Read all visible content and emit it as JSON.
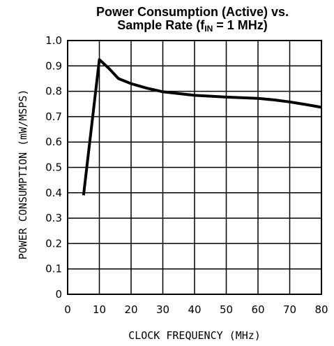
{
  "chart_data": {
    "type": "line",
    "title_line1": "Power Consumption (Active) vs.",
    "title_line2_prefix": "Sample Rate (f",
    "title_line2_sub": "IN",
    "title_line2_suffix": " = 1 MHz)",
    "xlabel": "CLOCK FREQUENCY (MHz)",
    "ylabel": "POWER CONSUMPTION (mW/MSPS)",
    "xlim": [
      0,
      80
    ],
    "ylim": [
      0,
      1.0
    ],
    "x_ticks": [
      "0",
      "10",
      "20",
      "30",
      "40",
      "50",
      "60",
      "70",
      "80"
    ],
    "y_ticks": [
      "0",
      "0.1",
      "0.2",
      "0.3",
      "0.4",
      "0.5",
      "0.6",
      "0.7",
      "0.8",
      "0.9",
      "1.0"
    ],
    "grid": true,
    "line_color": "#000000",
    "series": [
      {
        "x": [
          5,
          10,
          13,
          16,
          20,
          25,
          30,
          40,
          50,
          60,
          65,
          70,
          75,
          80
        ],
        "y": [
          0.39,
          0.925,
          0.89,
          0.85,
          0.83,
          0.812,
          0.798,
          0.784,
          0.777,
          0.772,
          0.766,
          0.758,
          0.748,
          0.737
        ]
      }
    ]
  }
}
